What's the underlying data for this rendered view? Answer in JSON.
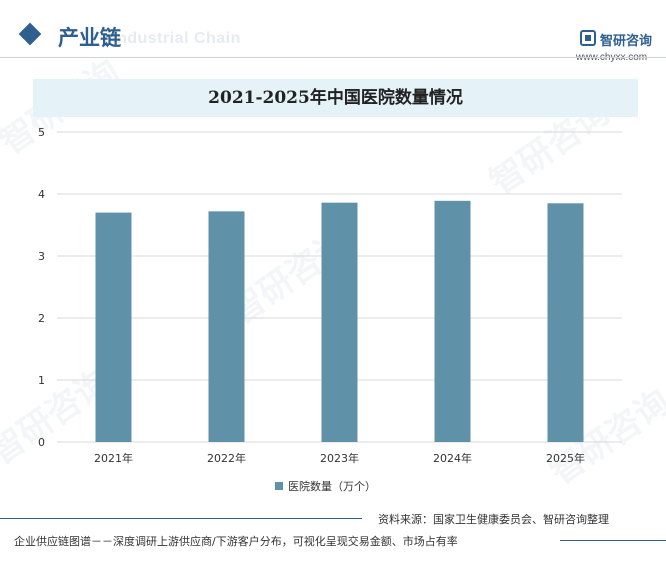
{
  "header": {
    "section_title": "产业链",
    "section_title_en": "Industrial Chain",
    "brand_name": "智研咨询",
    "brand_url": "www.chyxx.com",
    "watermark_text": "智研咨询"
  },
  "chart_data": {
    "type": "bar",
    "title": "2021-2025年中国医院数量情况",
    "categories": [
      "2021年",
      "2022年",
      "2023年",
      "2024年",
      "2025年"
    ],
    "series": [
      {
        "name": "医院数量（万个）",
        "values": [
          3.7,
          3.72,
          3.86,
          3.89,
          3.85
        ],
        "color": "#5f92a8"
      }
    ],
    "ylim": [
      0,
      5
    ],
    "yticks": [
      "0",
      "1",
      "2",
      "3",
      "4",
      "5"
    ],
    "grid": true,
    "legend_position": "bottom"
  },
  "footer": {
    "source": "资料来源：国家卫生健康委员会、智研咨询整理",
    "note": "企业供应链图谱－－深度调研上游供应商/下游客户分布，可视化呈现交易金额、市场占有率"
  },
  "colors": {
    "accent": "#2f5f8f",
    "bar": "#5f92a8",
    "title_band": "#e5f2f8"
  }
}
